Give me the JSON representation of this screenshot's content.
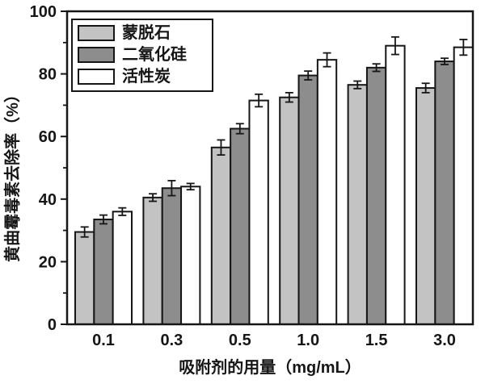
{
  "figure": {
    "background_color": "#ffffff",
    "ink_color": "#161616"
  },
  "chart_data": {
    "type": "bar",
    "title": "",
    "xlabel": "吸附剂的用量（mg/mL）",
    "ylabel": "黄曲霉毒素去除率（%）",
    "categories": [
      "0.1",
      "0.3",
      "0.5",
      "1.0",
      "1.5",
      "3.0"
    ],
    "series": [
      {
        "name": "蒙脱石",
        "color": "#c3c3c3",
        "values": [
          29.5,
          40.5,
          56.5,
          72.5,
          76.5,
          75.5
        ],
        "errors": [
          1.6,
          1.2,
          2.4,
          1.5,
          1.2,
          1.5
        ]
      },
      {
        "name": "二氧化硅",
        "color": "#8d8d8d",
        "values": [
          33.5,
          43.5,
          62.5,
          79.5,
          82.0,
          84.0
        ],
        "errors": [
          1.4,
          2.4,
          1.6,
          1.4,
          1.2,
          1.0
        ]
      },
      {
        "name": "活性炭",
        "color": "#ffffff",
        "values": [
          36.0,
          44.0,
          71.5,
          84.5,
          89.0,
          88.5
        ],
        "errors": [
          1.2,
          1.0,
          2.0,
          2.2,
          2.8,
          2.5
        ]
      }
    ],
    "ylim": [
      0,
      100
    ],
    "yticks": [
      0,
      20,
      40,
      60,
      80,
      100
    ],
    "y_minor_step": 10,
    "grid": false,
    "error_bars": true,
    "legend_position": "top-left"
  }
}
